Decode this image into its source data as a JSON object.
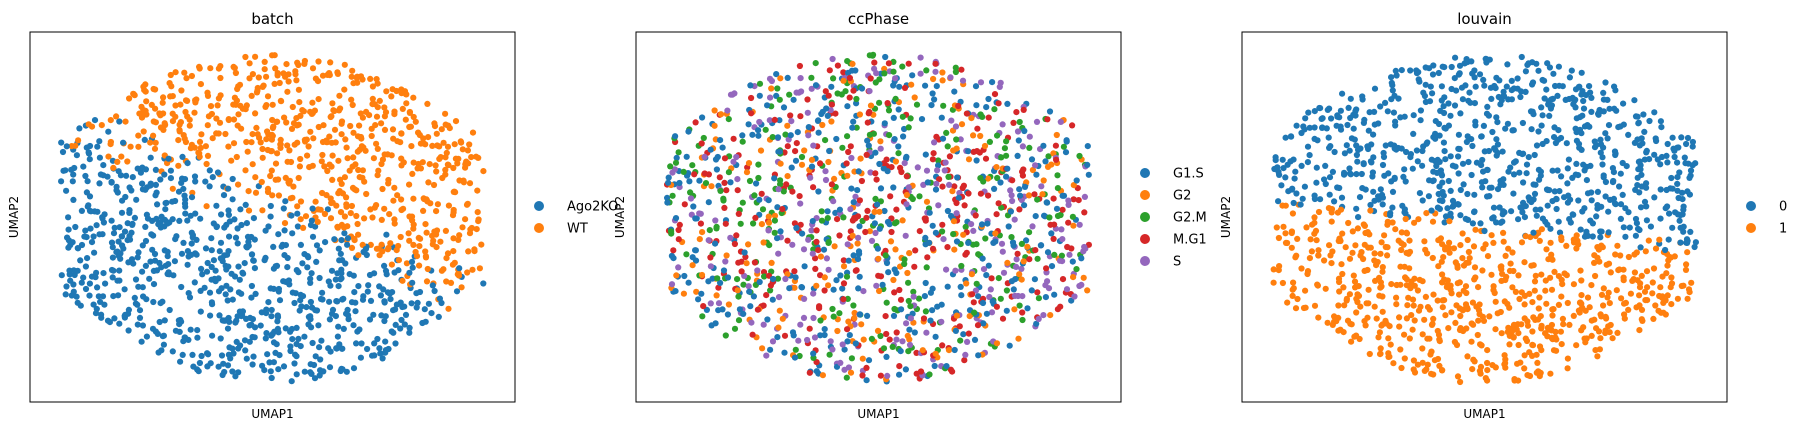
{
  "chart_data": [
    {
      "type": "scatter",
      "title": "batch",
      "xlabel": "UMAP1",
      "ylabel": "UMAP2",
      "grid": false,
      "legend_position": "right",
      "categories": [
        "Ago2KO",
        "WT"
      ],
      "colors": [
        "#1f77b4",
        "#ff7f0e"
      ],
      "xlim": [
        -1,
        1
      ],
      "ylim": [
        -1,
        1
      ],
      "series": [
        {
          "name": "Ago2KO",
          "approx_points": 750,
          "region": "lower-right"
        },
        {
          "name": "WT",
          "approx_points": 700,
          "region": "upper-left"
        }
      ]
    },
    {
      "type": "scatter",
      "title": "ccPhase",
      "xlabel": "UMAP1",
      "ylabel": "UMAP2",
      "grid": false,
      "legend_position": "right",
      "categories": [
        "G1.S",
        "G2",
        "G2.M",
        "M.G1",
        "S"
      ],
      "colors": [
        "#1f77b4",
        "#ff7f0e",
        "#2ca02c",
        "#d62728",
        "#9467bd"
      ],
      "xlim": [
        -1,
        1
      ],
      "ylim": [
        -1,
        1
      ],
      "series": [
        {
          "name": "G1.S",
          "approx_points": 420,
          "region": "mixed"
        },
        {
          "name": "G2",
          "approx_points": 220,
          "region": "mixed"
        },
        {
          "name": "G2.M",
          "approx_points": 270,
          "region": "mixed"
        },
        {
          "name": "M.G1",
          "approx_points": 300,
          "region": "mixed"
        },
        {
          "name": "S",
          "approx_points": 240,
          "region": "mixed"
        }
      ]
    },
    {
      "type": "scatter",
      "title": "louvain",
      "xlabel": "UMAP1",
      "ylabel": "UMAP2",
      "grid": false,
      "legend_position": "right",
      "categories": [
        "0",
        "1"
      ],
      "colors": [
        "#1f77b4",
        "#ff7f0e"
      ],
      "xlim": [
        -1,
        1
      ],
      "ylim": [
        -1,
        1
      ],
      "series": [
        {
          "name": "0",
          "approx_points": 720,
          "region": "upper"
        },
        {
          "name": "1",
          "approx_points": 730,
          "region": "lower"
        }
      ]
    }
  ]
}
